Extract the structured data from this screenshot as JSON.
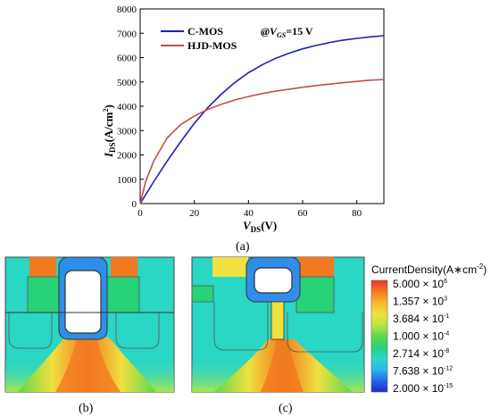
{
  "chart_data": [
    {
      "type": "line",
      "xlabel": {
        "main": "V",
        "sub": "DS",
        "tail": "(V)"
      },
      "ylabel": {
        "main": "I",
        "sub": "DS",
        "tail": "(A/cm",
        "sup": "2",
        "end": ")"
      },
      "xlim": [
        0,
        90
      ],
      "ylim": [
        0,
        8000
      ],
      "xticks": [
        0,
        20,
        40,
        60,
        80
      ],
      "yticks": [
        0,
        1000,
        2000,
        3000,
        4000,
        5000,
        6000,
        7000,
        8000
      ],
      "condition": {
        "prefix": "@V",
        "sub": "GS",
        "suffix": "=15 V"
      },
      "legend_position": "top-left",
      "caption": "(a)",
      "series": [
        {
          "name": "C-MOS",
          "color": "#1f1fb4",
          "x": [
            0,
            5,
            10,
            15,
            20,
            25,
            30,
            35,
            40,
            45,
            50,
            55,
            60,
            65,
            70,
            75,
            80,
            85,
            90
          ],
          "y": [
            0,
            900,
            1750,
            2550,
            3300,
            3950,
            4500,
            4980,
            5380,
            5700,
            5970,
            6180,
            6360,
            6500,
            6620,
            6720,
            6790,
            6850,
            6900
          ]
        },
        {
          "name": "HJD-MOS",
          "color": "#c0504d",
          "x": [
            0,
            2,
            5,
            10,
            15,
            20,
            25,
            30,
            35,
            40,
            45,
            50,
            55,
            60,
            65,
            70,
            75,
            80,
            85,
            90
          ],
          "y": [
            0,
            900,
            1750,
            2700,
            3250,
            3600,
            3870,
            4080,
            4260,
            4400,
            4520,
            4620,
            4700,
            4780,
            4850,
            4910,
            4970,
            5020,
            5070,
            5100
          ]
        }
      ]
    }
  ],
  "panels": {
    "b": {
      "caption": "(b)"
    },
    "c": {
      "caption": "(c)"
    }
  },
  "colorbar": {
    "title": "CurrentDensity(A∗cm",
    "title_sup": "-2",
    "title_end": ")",
    "labels": [
      {
        "mant": "5.000 × 10",
        "exp": "6"
      },
      {
        "mant": "1.357 × 10",
        "exp": "3"
      },
      {
        "mant": "3.684 × 10",
        "exp": "-1"
      },
      {
        "mant": "1.000 × 10",
        "exp": "-4"
      },
      {
        "mant": "2.714 × 10",
        "exp": "-8"
      },
      {
        "mant": "7.638 × 10",
        "exp": "-12"
      },
      {
        "mant": "2.000 × 10",
        "exp": "-15"
      }
    ],
    "colors": [
      "#e8372b",
      "#f27a20",
      "#f7b733",
      "#f0e040",
      "#b8e840",
      "#5fd84a",
      "#28d278",
      "#2ad6c4",
      "#2fb6ee",
      "#2a64e8",
      "#1a2ad0"
    ]
  }
}
